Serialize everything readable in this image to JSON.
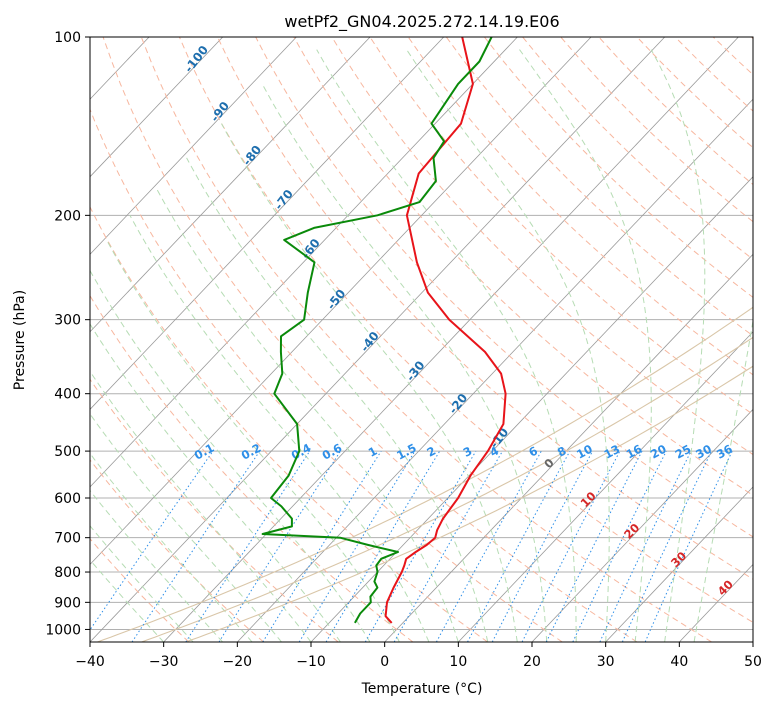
{
  "chart_data": {
    "type": "skew-t log-p (line)",
    "title": "wetPf2_GN04.2025.272.14.19.E06",
    "xlabel": "Temperature (°C)",
    "ylabel": "Pressure (hPa)",
    "xlim": [
      -40,
      50
    ],
    "ylim": [
      1050,
      100
    ],
    "x_ticks": [
      -40,
      -30,
      -20,
      -10,
      0,
      10,
      20,
      30,
      40,
      50
    ],
    "x_tick_labels": [
      "−40",
      "−30",
      "−20",
      "−10",
      "0",
      "10",
      "20",
      "30",
      "40",
      "50"
    ],
    "y_ticks": [
      1000,
      900,
      800,
      700,
      600,
      500,
      400,
      300,
      200,
      100
    ],
    "y_tick_labels": [
      "1000",
      "900",
      "800",
      "700",
      "600",
      "500",
      "400",
      "300",
      "200",
      "100"
    ],
    "colors": {
      "temperature": "#e8141a",
      "dewpoint": "#0a8a0a",
      "grid": "#b0b0b0",
      "isotherm": "#9a9a9a",
      "dry_adiabat": "#f7b79f",
      "moist_adiabat": "#b6dcb4",
      "mixing_ratio": "#2e8fe8",
      "dry_label": "#1f6fae",
      "moist_label": "#d62728",
      "lcl_curve": "#d9c6a8"
    },
    "series": [
      {
        "name": "Temperature",
        "color": "#e8141a",
        "points": [
          [
            975,
            -1.5
          ],
          [
            950,
            -3.2
          ],
          [
            900,
            -4.8
          ],
          [
            850,
            -5.8
          ],
          [
            800,
            -6.7
          ],
          [
            780,
            -7.2
          ],
          [
            760,
            -7.8
          ],
          [
            740,
            -7.4
          ],
          [
            720,
            -6.8
          ],
          [
            700,
            -6.6
          ],
          [
            680,
            -7.3
          ],
          [
            650,
            -8.0
          ],
          [
            600,
            -8.6
          ],
          [
            550,
            -9.8
          ],
          [
            500,
            -10.6
          ],
          [
            450,
            -12.0
          ],
          [
            400,
            -15.6
          ],
          [
            370,
            -18.8
          ],
          [
            340,
            -23.8
          ],
          [
            300,
            -32.8
          ],
          [
            270,
            -39.2
          ],
          [
            240,
            -44.6
          ],
          [
            200,
            -52.0
          ],
          [
            170,
            -55.8
          ],
          [
            140,
            -56.5
          ],
          [
            120,
            -60.0
          ],
          [
            100,
            -67.5
          ]
        ]
      },
      {
        "name": "Dewpoint",
        "color": "#0a8a0a",
        "points": [
          [
            975,
            -6.5
          ],
          [
            940,
            -7.0
          ],
          [
            900,
            -7.0
          ],
          [
            880,
            -7.8
          ],
          [
            850,
            -8.0
          ],
          [
            830,
            -9.2
          ],
          [
            800,
            -10.0
          ],
          [
            780,
            -11.0
          ],
          [
            760,
            -11.2
          ],
          [
            740,
            -9.8
          ],
          [
            720,
            -14.8
          ],
          [
            700,
            -19.5
          ],
          [
            690,
            -30.5
          ],
          [
            670,
            -27.5
          ],
          [
            650,
            -28.5
          ],
          [
            620,
            -31.5
          ],
          [
            600,
            -34.0
          ],
          [
            550,
            -34.5
          ],
          [
            500,
            -36.2
          ],
          [
            450,
            -40.0
          ],
          [
            400,
            -47.0
          ],
          [
            370,
            -48.5
          ],
          [
            340,
            -51.5
          ],
          [
            320,
            -53.5
          ],
          [
            300,
            -52.5
          ],
          [
            270,
            -55.5
          ],
          [
            240,
            -58.5
          ],
          [
            220,
            -65.5
          ],
          [
            210,
            -63.0
          ],
          [
            200,
            -56.0
          ],
          [
            190,
            -52.0
          ],
          [
            175,
            -52.5
          ],
          [
            160,
            -55.8
          ],
          [
            150,
            -56.5
          ],
          [
            140,
            -60.5
          ],
          [
            120,
            -62.0
          ],
          [
            110,
            -62.0
          ],
          [
            100,
            -63.5
          ]
        ]
      }
    ],
    "dry_adiabat_labels": [
      "-100",
      "-90",
      "-80",
      "-70",
      "-60",
      "-50",
      "-40",
      "-30",
      "-20",
      "-10"
    ],
    "mixing_ratio_labels": [
      "0.1",
      "0.2",
      "0.4",
      "0.6",
      "1",
      "1.5",
      "2",
      "3",
      "4",
      "6",
      "8",
      "10",
      "13",
      "16",
      "20",
      "25",
      "30",
      "36"
    ],
    "moist_adiabat_labels": [
      "0",
      "10",
      "20",
      "30",
      "40"
    ]
  }
}
